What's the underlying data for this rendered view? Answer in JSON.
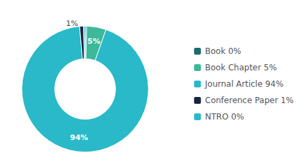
{
  "chart_data": {
    "type": "donut",
    "categories": [
      "Book 0%",
      "Book Chapter 5%",
      "Journal Article 94%",
      "Conference Paper 1%",
      "NTRO 0%"
    ],
    "values": [
      0.4,
      5,
      94,
      1,
      0.4
    ],
    "value_labels": [
      null,
      "5%",
      "94%",
      "1%",
      null
    ],
    "colors": [
      "#1e6b6b",
      "#3db899",
      "#29b9c9",
      "#1a2340",
      "#29b9c9"
    ],
    "data_labels": true,
    "legend": "right"
  }
}
